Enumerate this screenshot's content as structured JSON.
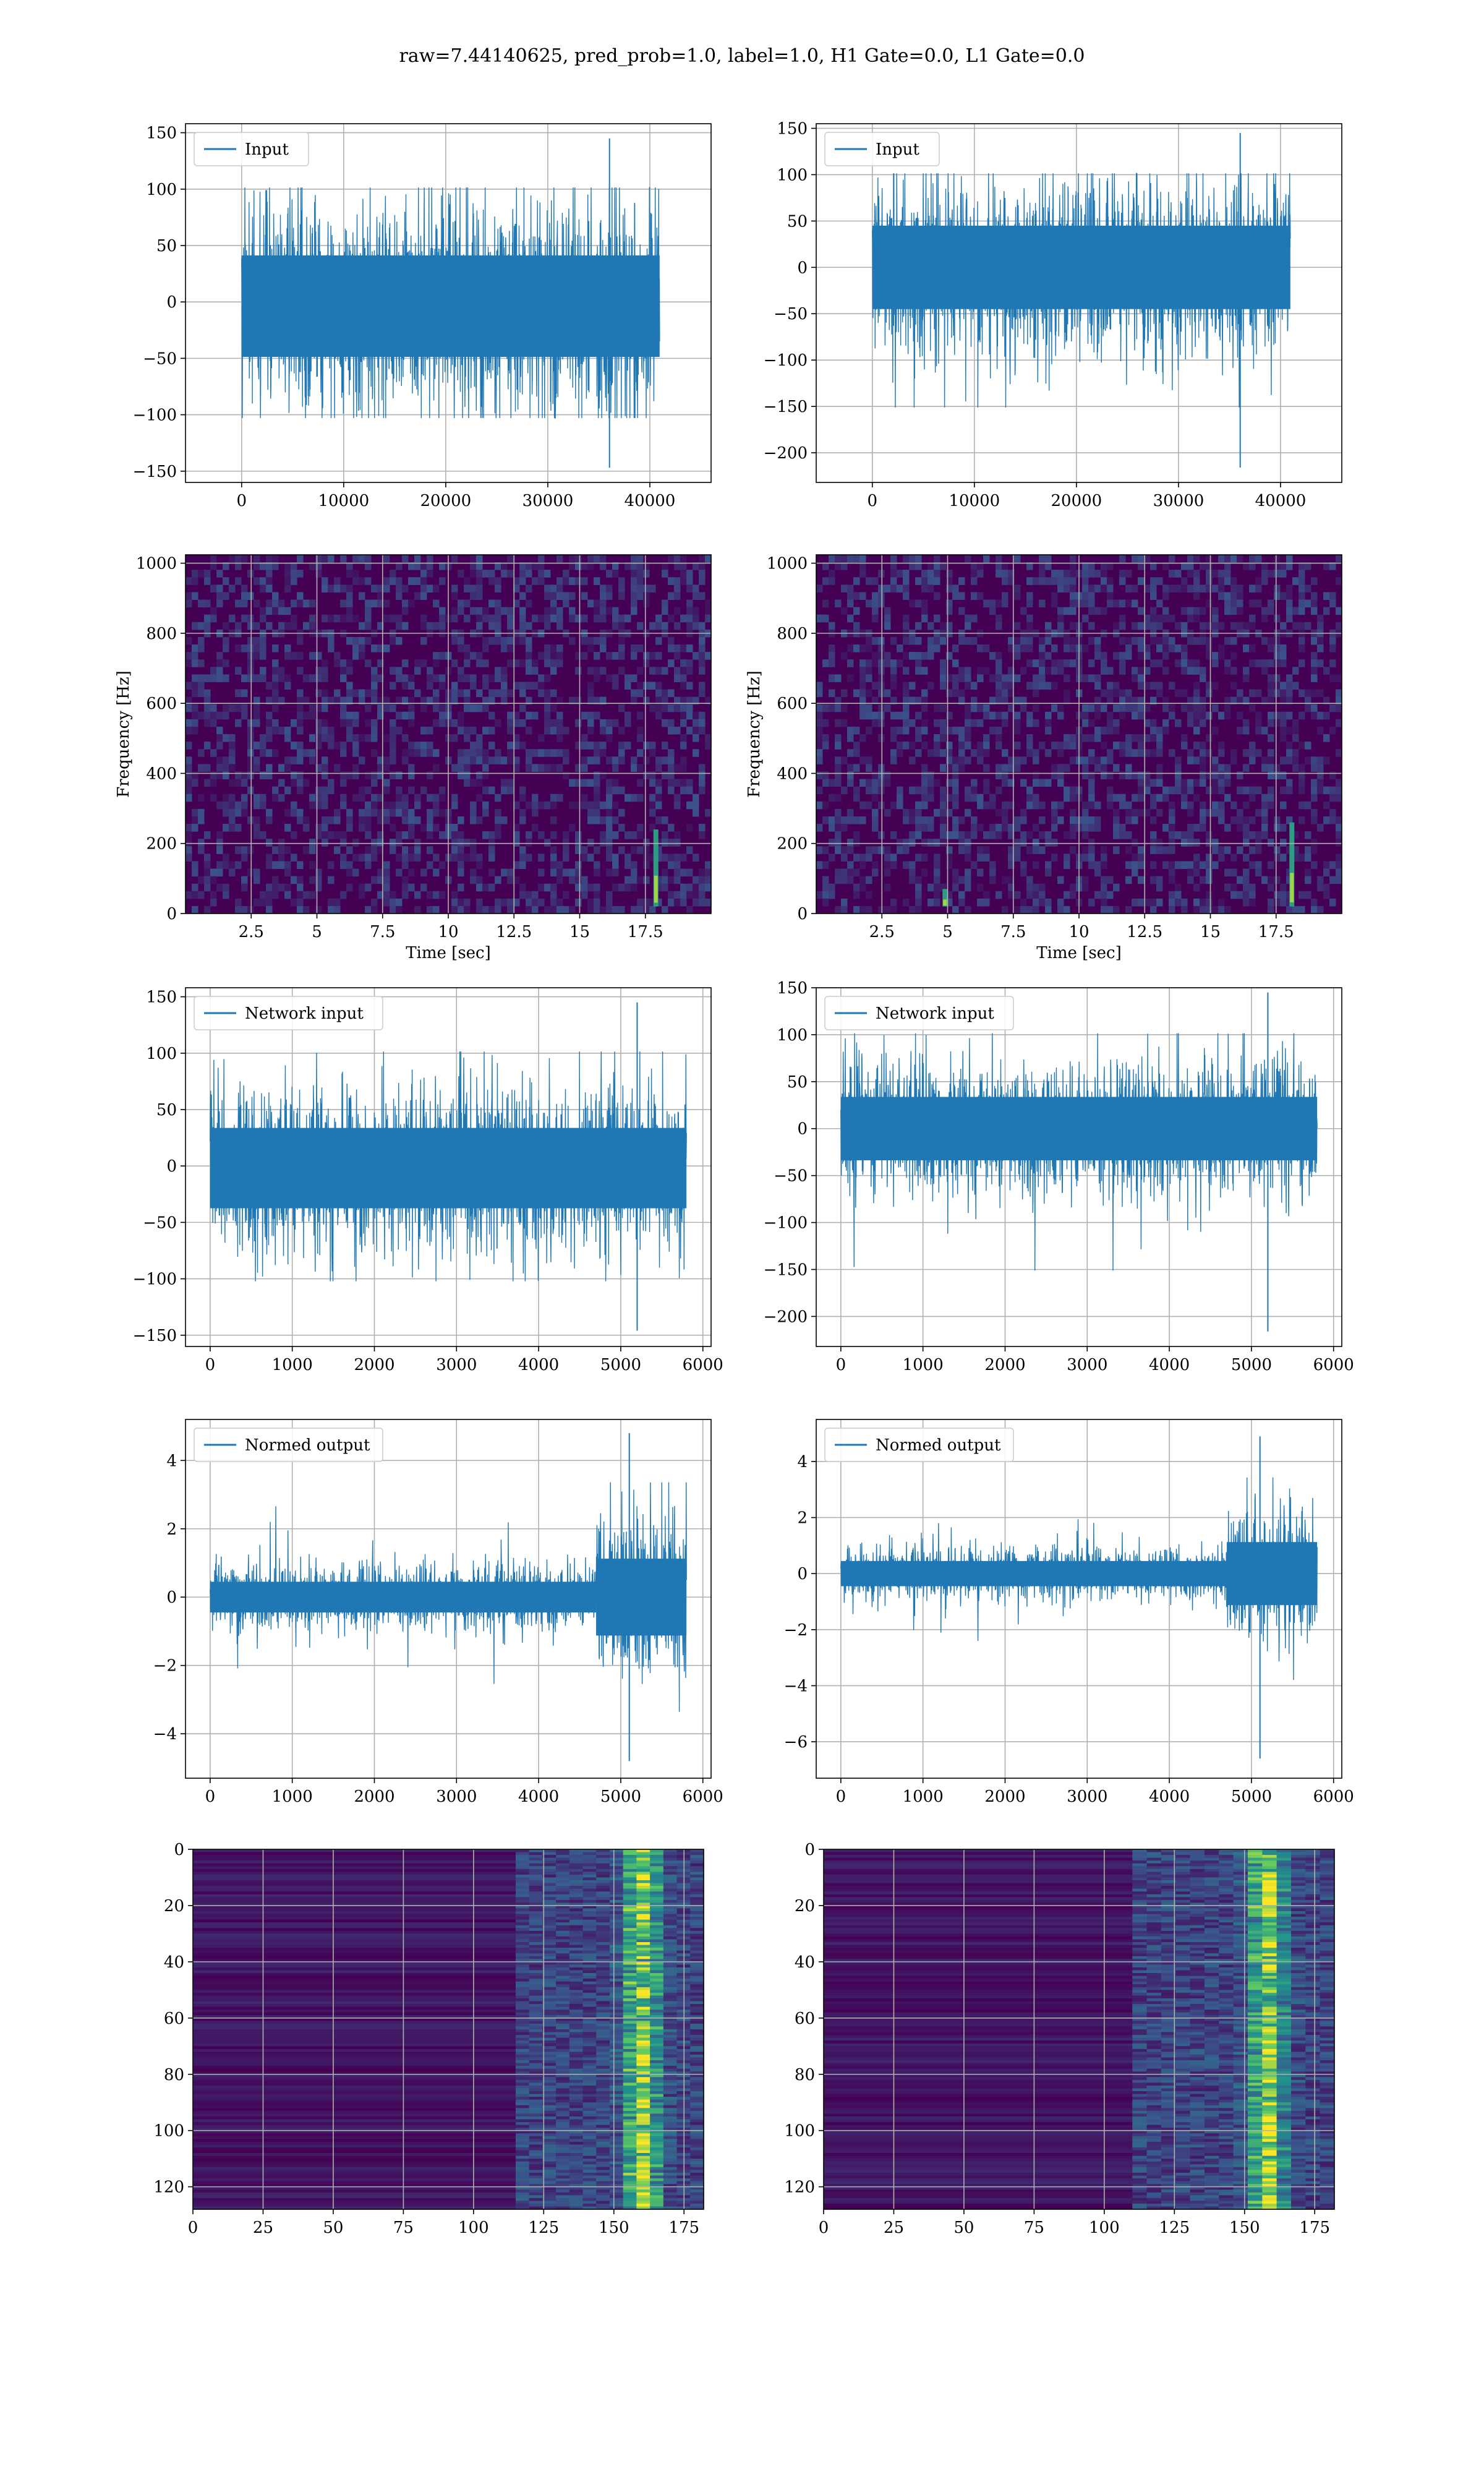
{
  "figure": {
    "title": "raw=7.44140625, pred_prob=1.0, label=1.0, H1 Gate=0.0, L1 Gate=0.0"
  },
  "colors": {
    "line": "#1f77b4",
    "viridis_low": "#440154",
    "viridis_mid": "#21918c",
    "viridis_high": "#fde725",
    "grid": "#b0b0b0"
  },
  "chart_data": [
    {
      "id": "input-h1",
      "type": "line",
      "legend": "Input",
      "legend_position": "upper-left",
      "xlim": [
        -5500,
        46000
      ],
      "ylim": [
        -160,
        158
      ],
      "xticks": [
        0,
        10000,
        20000,
        30000,
        40000
      ],
      "yticks": [
        -150,
        -100,
        -50,
        0,
        50,
        100,
        150
      ],
      "signal": {
        "n": 40960,
        "dense_band": [
          -65,
          55
        ],
        "spike_max": 145,
        "spike_min": -147
      }
    },
    {
      "id": "input-l1",
      "type": "line",
      "legend": "Input",
      "legend_position": "upper-left",
      "xlim": [
        -5500,
        46000
      ],
      "ylim": [
        -232,
        155
      ],
      "xticks": [
        0,
        10000,
        20000,
        30000,
        40000
      ],
      "yticks": [
        -200,
        -150,
        -100,
        -50,
        0,
        50,
        100,
        150
      ],
      "signal": {
        "n": 40960,
        "dense_band": [
          -60,
          60
        ],
        "spike_max": 145,
        "spike_min": -216
      }
    },
    {
      "id": "spectrogram-h1",
      "type": "heatmap",
      "xlabel": "Time [sec]",
      "ylabel": "Frequency [Hz]",
      "xlim": [
        0,
        20
      ],
      "ylim": [
        0,
        1024
      ],
      "xticks": [
        2.5,
        5.0,
        7.5,
        10.0,
        12.5,
        15.0,
        17.5
      ],
      "yticks": [
        0,
        200,
        400,
        600,
        800,
        1000
      ],
      "features": [
        {
          "t": 17.9,
          "f_low": 20,
          "f_high": 240
        }
      ]
    },
    {
      "id": "spectrogram-l1",
      "type": "heatmap",
      "xlabel": "Time [sec]",
      "ylabel": "Frequency [Hz]",
      "xlim": [
        0,
        20
      ],
      "ylim": [
        0,
        1024
      ],
      "xticks": [
        2.5,
        5.0,
        7.5,
        10.0,
        12.5,
        15.0,
        17.5
      ],
      "yticks": [
        0,
        200,
        400,
        600,
        800,
        1000
      ],
      "features": [
        {
          "t": 18.1,
          "f_low": 20,
          "f_high": 260
        },
        {
          "t": 4.9,
          "f_low": 20,
          "f_high": 70
        }
      ]
    },
    {
      "id": "network-input-h1",
      "type": "line",
      "legend": "Network input",
      "legend_position": "upper-left",
      "xlim": [
        -300,
        6100
      ],
      "ylim": [
        -160,
        158
      ],
      "xticks": [
        0,
        1000,
        2000,
        3000,
        4000,
        5000,
        6000
      ],
      "yticks": [
        -150,
        -100,
        -50,
        0,
        50,
        100,
        150
      ],
      "signal": {
        "n": 5800,
        "dense_band": [
          -50,
          45
        ],
        "spike_max": 145,
        "spike_min": -146,
        "spike_at": 5200
      }
    },
    {
      "id": "network-input-l1",
      "type": "line",
      "legend": "Network input",
      "legend_position": "upper-left",
      "xlim": [
        -300,
        6100
      ],
      "ylim": [
        -232,
        150
      ],
      "xticks": [
        0,
        1000,
        2000,
        3000,
        4000,
        5000,
        6000
      ],
      "yticks": [
        -200,
        -150,
        -100,
        -50,
        0,
        50,
        100,
        150
      ],
      "signal": {
        "n": 5800,
        "dense_band": [
          -45,
          45
        ],
        "spike_max": 145,
        "spike_min": -216,
        "spike_at": 5200
      }
    },
    {
      "id": "normed-output-h1",
      "type": "line",
      "legend": "Normed output",
      "legend_position": "upper-left",
      "xlim": [
        -300,
        6100
      ],
      "ylim": [
        -5.3,
        5.2
      ],
      "xticks": [
        0,
        1000,
        2000,
        3000,
        4000,
        5000,
        6000
      ],
      "yticks": [
        -4,
        -2,
        0,
        2,
        4
      ],
      "signal": {
        "n": 5800,
        "dense_band": [
          -0.6,
          0.6
        ],
        "burst_start": 4700,
        "burst_band": [
          -1.5,
          1.5
        ],
        "spike_max": 4.8,
        "spike_min": -4.8
      }
    },
    {
      "id": "normed-output-l1",
      "type": "line",
      "legend": "Normed output",
      "legend_position": "upper-left",
      "xlim": [
        -300,
        6100
      ],
      "ylim": [
        -7.3,
        5.5
      ],
      "xticks": [
        0,
        1000,
        2000,
        3000,
        4000,
        5000,
        6000
      ],
      "yticks": [
        -6,
        -4,
        -2,
        0,
        2,
        4
      ],
      "signal": {
        "n": 5800,
        "dense_band": [
          -0.6,
          0.6
        ],
        "burst_start": 4700,
        "burst_band": [
          -1.5,
          1.5
        ],
        "spike_max": 4.9,
        "spike_min": -6.6
      }
    },
    {
      "id": "feature-map-h1",
      "type": "heatmap",
      "xlim": [
        0,
        182
      ],
      "ylim": [
        128,
        0
      ],
      "xticks": [
        0,
        25,
        50,
        75,
        100,
        125,
        150,
        175
      ],
      "yticks": [
        0,
        20,
        40,
        60,
        80,
        100,
        120
      ],
      "features": [
        {
          "x_start": 115,
          "hot_x": 160
        }
      ]
    },
    {
      "id": "feature-map-l1",
      "type": "heatmap",
      "xlim": [
        0,
        182
      ],
      "ylim": [
        128,
        0
      ],
      "xticks": [
        0,
        25,
        50,
        75,
        100,
        125,
        150,
        175
      ],
      "yticks": [
        0,
        20,
        40,
        60,
        80,
        100,
        120
      ],
      "features": [
        {
          "x_start": 110,
          "hot_x": 158
        }
      ]
    }
  ]
}
